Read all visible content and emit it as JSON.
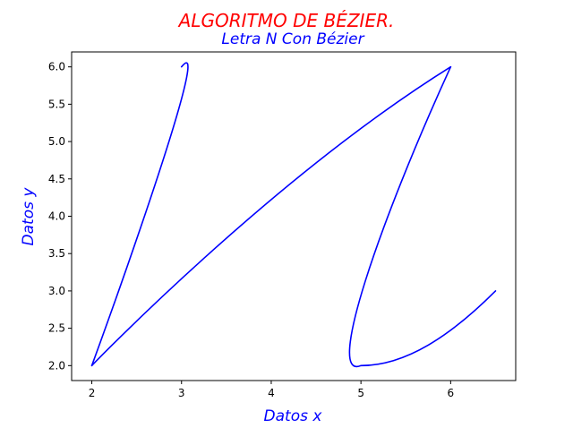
{
  "chart_data": {
    "type": "line",
    "suptitle": "ALGORITMO DE BÉZIER.",
    "title": "Letra N Con Bézier",
    "xlabel": "Datos x",
    "ylabel": "Datos y",
    "xlim": [
      1.775,
      6.725
    ],
    "ylim": [
      1.8,
      6.2
    ],
    "xticks": [
      "2",
      "3",
      "4",
      "5",
      "6"
    ],
    "yticks": [
      "2.0",
      "2.5",
      "3.0",
      "3.5",
      "4.0",
      "4.5",
      "5.0",
      "5.5",
      "6.0"
    ],
    "grid": false,
    "series": [
      {
        "color": "#0000ff",
        "segments": [
          [
            [
              2.0,
              2.0
            ],
            [
              2.0,
              2.0
            ],
            [
              3.4,
              6.6
            ],
            [
              3.0,
              6.0
            ]
          ],
          [
            [
              2.0,
              2.0
            ],
            [
              2.0,
              2.0
            ],
            [
              4.0,
              4.5
            ],
            [
              6.0,
              6.0
            ]
          ],
          [
            [
              6.0,
              6.0
            ],
            [
              5.2,
              3.9
            ],
            [
              4.6,
              1.8
            ],
            [
              5.0,
              2.0
            ]
          ],
          [
            [
              5.0,
              2.0
            ],
            [
              5.5,
              2.0
            ],
            [
              6.0,
              2.4
            ],
            [
              6.5,
              3.0
            ]
          ]
        ]
      }
    ],
    "colors": {
      "suptitle": "#ff0000",
      "title": "#0000ff",
      "axis_labels": "#0000ff",
      "line": "#0000ff"
    }
  }
}
